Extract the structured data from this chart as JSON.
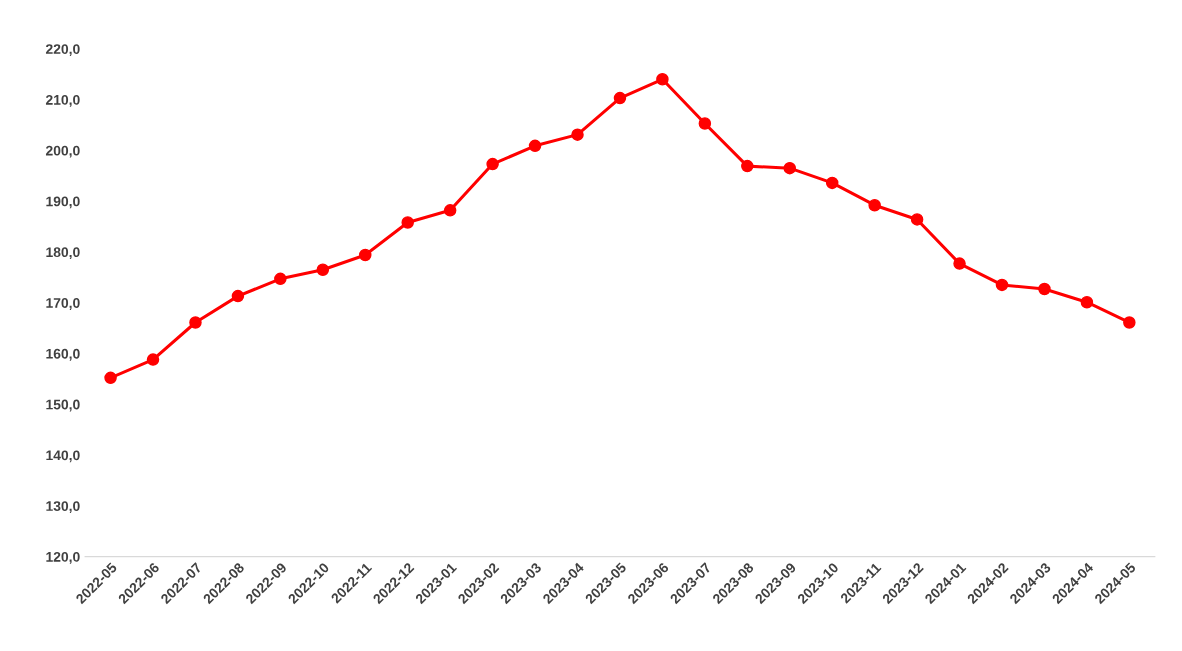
{
  "chart_data": {
    "type": "line",
    "categories": [
      "2022-05",
      "2022-06",
      "2022-07",
      "2022-08",
      "2022-09",
      "2022-10",
      "2022-11",
      "2022-12",
      "2023-01",
      "2023-02",
      "2023-03",
      "2023-04",
      "2023-05",
      "2023-06",
      "2023-07",
      "2023-08",
      "2023-09",
      "2023-10",
      "2023-11",
      "2023-12",
      "2024-01",
      "2024-02",
      "2024-03",
      "2024-04",
      "2024-05"
    ],
    "series": [
      {
        "color": "#ff0000",
        "values": [
          155.2,
          158.8,
          166.1,
          171.3,
          174.7,
          176.5,
          179.4,
          185.8,
          188.2,
          197.3,
          200.9,
          203.1,
          210.3,
          214.0,
          205.3,
          196.9,
          196.5,
          193.6,
          189.2,
          186.4,
          177.7,
          173.5,
          172.7,
          170.1,
          166.1
        ]
      }
    ],
    "ylim": [
      120,
      220
    ],
    "yticks": [
      {
        "value": 120,
        "label": "120,0"
      },
      {
        "value": 130,
        "label": "130,0"
      },
      {
        "value": 140,
        "label": "140,0"
      },
      {
        "value": 150,
        "label": "150,0"
      },
      {
        "value": 160,
        "label": "160,0"
      },
      {
        "value": 170,
        "label": "170,0"
      },
      {
        "value": 180,
        "label": "180,0"
      },
      {
        "value": 190,
        "label": "190,0"
      },
      {
        "value": 200,
        "label": "200,0"
      },
      {
        "value": 210,
        "label": "210,0"
      },
      {
        "value": 220,
        "label": "220,0"
      }
    ],
    "grid": false,
    "legend": false,
    "marker": "circle",
    "line_style": "solid"
  }
}
